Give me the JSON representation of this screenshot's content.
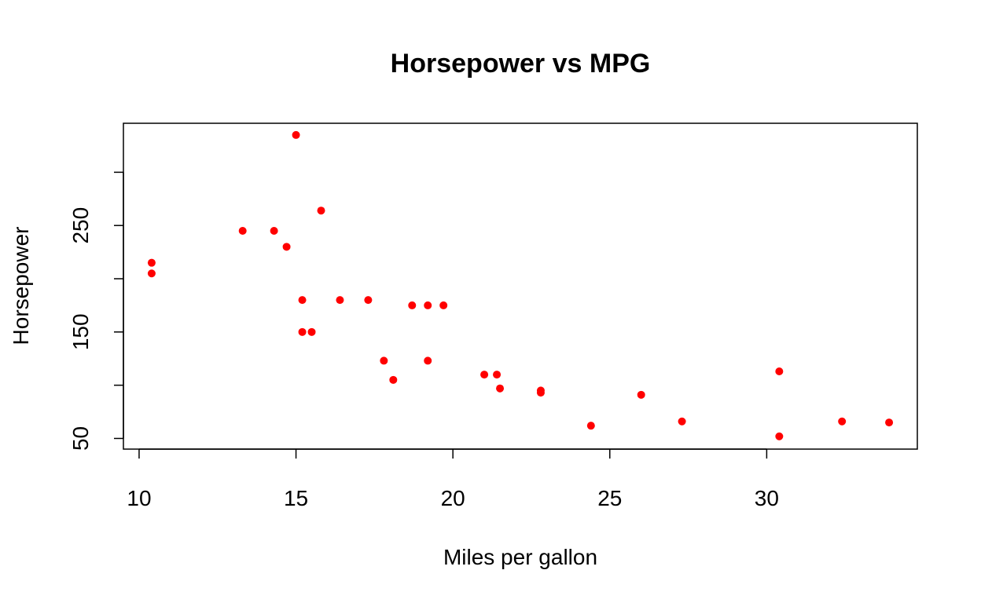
{
  "chart_data": {
    "type": "scatter",
    "title": "Horsepower vs MPG",
    "xlabel": "Miles per gallon",
    "ylabel": "Horsepower",
    "xlim": [
      9.5,
      34.8
    ],
    "ylim": [
      40,
      346
    ],
    "xticks": [
      10,
      15,
      20,
      25,
      30
    ],
    "yticks": [
      50,
      100,
      150,
      200,
      250,
      300
    ],
    "ytick_labels_shown": [
      "50",
      "150",
      "250"
    ],
    "grid": false,
    "marker_color": "#ff0000",
    "points": [
      {
        "x": 10.4,
        "y": 215
      },
      {
        "x": 10.4,
        "y": 205
      },
      {
        "x": 13.3,
        "y": 245
      },
      {
        "x": 14.3,
        "y": 245
      },
      {
        "x": 14.7,
        "y": 230
      },
      {
        "x": 15.0,
        "y": 335
      },
      {
        "x": 15.2,
        "y": 180
      },
      {
        "x": 15.2,
        "y": 150
      },
      {
        "x": 15.5,
        "y": 150
      },
      {
        "x": 15.8,
        "y": 264
      },
      {
        "x": 16.4,
        "y": 180
      },
      {
        "x": 17.3,
        "y": 180
      },
      {
        "x": 17.8,
        "y": 123
      },
      {
        "x": 18.1,
        "y": 105
      },
      {
        "x": 18.7,
        "y": 175
      },
      {
        "x": 19.2,
        "y": 175
      },
      {
        "x": 19.2,
        "y": 123
      },
      {
        "x": 19.7,
        "y": 175
      },
      {
        "x": 21.0,
        "y": 110
      },
      {
        "x": 21.4,
        "y": 110
      },
      {
        "x": 21.5,
        "y": 97
      },
      {
        "x": 22.8,
        "y": 95
      },
      {
        "x": 22.8,
        "y": 93
      },
      {
        "x": 24.4,
        "y": 62
      },
      {
        "x": 26.0,
        "y": 91
      },
      {
        "x": 27.3,
        "y": 66
      },
      {
        "x": 30.4,
        "y": 113
      },
      {
        "x": 30.4,
        "y": 52
      },
      {
        "x": 32.4,
        "y": 66
      },
      {
        "x": 33.9,
        "y": 65
      }
    ]
  }
}
